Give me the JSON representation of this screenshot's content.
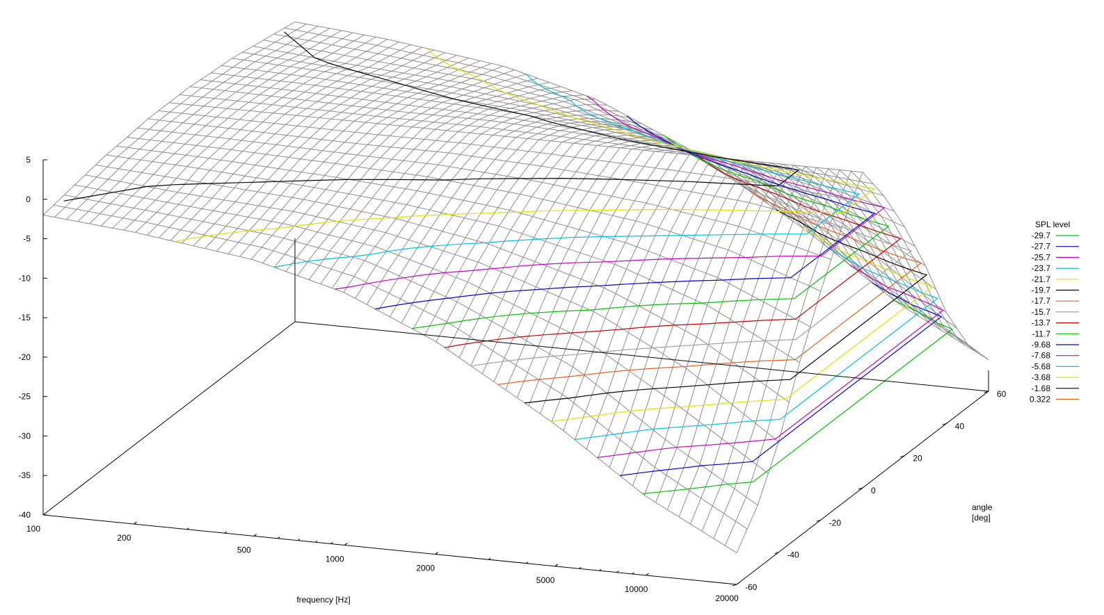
{
  "chart_data": {
    "type": "surface",
    "xlabel": "frequency  [Hz]",
    "ylabel": "angle\n[deg]",
    "x_scale": "log",
    "xlim": [
      100,
      20000
    ],
    "ylim": [
      -60,
      60
    ],
    "zlim": [
      -40,
      5
    ],
    "x_ticks": [
      "100",
      "200",
      "500",
      "1000",
      "2000",
      "5000",
      "10000",
      "20000"
    ],
    "y_ticks": [
      "-60",
      "-40",
      "-20",
      "0",
      "20",
      "40",
      "60"
    ],
    "z_ticks": [
      "5",
      "0",
      "-5",
      "-10",
      "-15",
      "-20",
      "-25",
      "-30",
      "-35",
      "-40"
    ],
    "grid": false,
    "mesh_color": "#8c8c8c",
    "legend": {
      "title": "SPL level",
      "position": "right",
      "entries": [
        {
          "label": "-29.7",
          "color": "#00c000"
        },
        {
          "label": "-27.7",
          "color": "#0000c0"
        },
        {
          "label": "-25.7",
          "color": "#c000c0"
        },
        {
          "label": "-23.7",
          "color": "#00c0e0"
        },
        {
          "label": "-21.7",
          "color": "#e0e000"
        },
        {
          "label": "-19.7",
          "color": "#000000"
        },
        {
          "label": "-17.7",
          "color": "#e06020"
        },
        {
          "label": "-15.7",
          "color": "#a0a0a0"
        },
        {
          "label": "-13.7",
          "color": "#c00000"
        },
        {
          "label": "-11.7",
          "color": "#00c000"
        },
        {
          "label": "-9.68",
          "color": "#0000c0"
        },
        {
          "label": "-7.68",
          "color": "#c000c0"
        },
        {
          "label": "-5.68",
          "color": "#00c0e0"
        },
        {
          "label": "-3.68",
          "color": "#e0e000"
        },
        {
          "label": "-1.68",
          "color": "#000000"
        },
        {
          "label": "0.322",
          "color": "#e06020"
        }
      ]
    },
    "surface": {
      "angles": [
        -60,
        -50,
        -40,
        -30,
        -20,
        -10,
        0,
        10,
        20,
        30,
        40,
        50,
        60
      ],
      "frequencies": [
        100,
        200,
        500,
        1000,
        2000,
        5000,
        10000,
        20000
      ],
      "spl": [
        [
          -2,
          -3,
          -5,
          -8,
          -13,
          -22,
          -30,
          -36
        ],
        [
          -1.5,
          -2.5,
          -4,
          -6,
          -10,
          -17,
          -25,
          -32
        ],
        [
          -1,
          -2,
          -3,
          -4.5,
          -7,
          -12,
          -18,
          -26
        ],
        [
          -0.5,
          -1,
          -2,
          -3,
          -4.5,
          -8,
          -12,
          -18
        ],
        [
          -0.3,
          -0.5,
          -1,
          -1.5,
          -2.5,
          -4.5,
          -7,
          -11
        ],
        [
          0,
          -0.2,
          -0.5,
          -0.5,
          -1,
          -2,
          -3,
          -5
        ],
        [
          0,
          0,
          0,
          0,
          0,
          0,
          0,
          0
        ],
        [
          0,
          -0.2,
          -0.5,
          -0.5,
          -1,
          -2,
          -3,
          -5
        ],
        [
          -0.3,
          -0.5,
          -1,
          -1.5,
          -2.5,
          -4.5,
          -7,
          -11
        ],
        [
          -0.5,
          -1,
          -2,
          -3,
          -4.5,
          -8,
          -12,
          -18
        ],
        [
          -1,
          -2,
          -3,
          -4.5,
          -7,
          -12,
          -18,
          -26
        ],
        [
          -1.5,
          -2.5,
          -4,
          -6,
          -10,
          -17,
          -25,
          -32
        ],
        [
          -2,
          -3,
          -5,
          -8,
          -13,
          -22,
          -30,
          -36
        ]
      ]
    }
  }
}
